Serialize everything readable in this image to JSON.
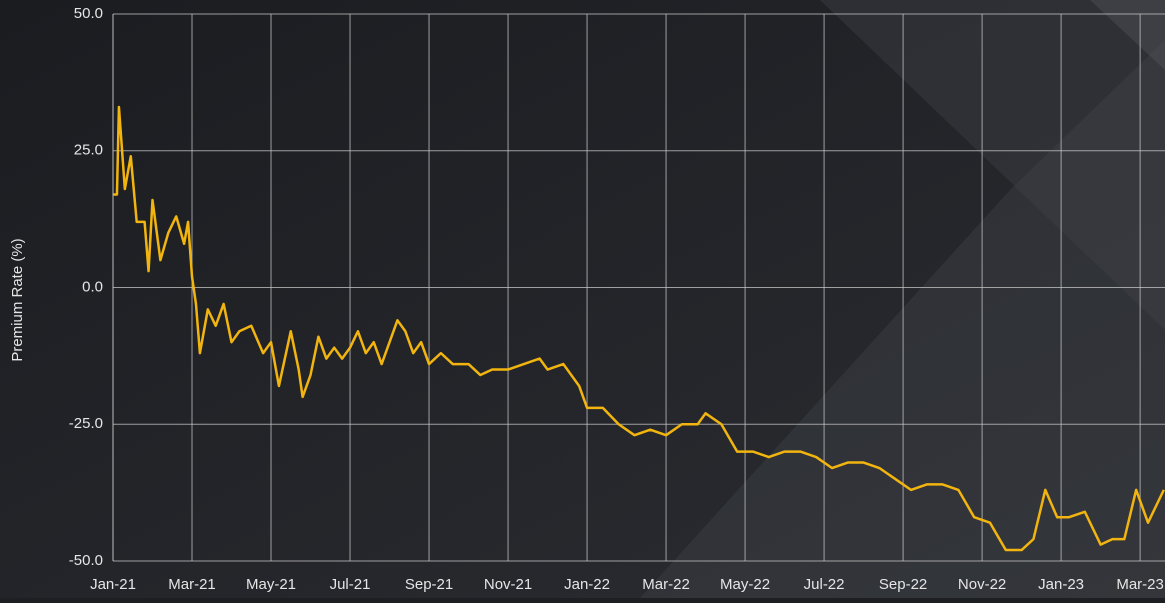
{
  "chart_data": {
    "type": "line",
    "y_label": "Premium Rate (%)",
    "x": [
      0,
      0.1,
      0.15,
      0.3,
      0.45,
      0.6,
      0.8,
      0.9,
      1.0,
      1.2,
      1.4,
      1.6,
      1.8,
      1.9,
      2.0,
      2.1,
      2.2,
      2.4,
      2.6,
      2.8,
      3.0,
      3.2,
      3.5,
      3.8,
      4.0,
      4.2,
      4.5,
      4.7,
      4.8,
      5.0,
      5.2,
      5.4,
      5.6,
      5.8,
      6.0,
      6.2,
      6.4,
      6.6,
      6.8,
      7.0,
      7.2,
      7.4,
      7.6,
      7.8,
      8.0,
      8.3,
      8.6,
      9.0,
      9.3,
      9.6,
      10.0,
      10.4,
      10.8,
      11.0,
      11.4,
      11.8,
      12.0,
      12.4,
      12.8,
      13.2,
      13.6,
      14.0,
      14.4,
      14.8,
      15.0,
      15.4,
      15.8,
      16.2,
      16.6,
      17.0,
      17.4,
      17.8,
      18.2,
      18.6,
      19.0,
      19.4,
      19.8,
      20.2,
      20.6,
      21.0,
      21.4,
      21.8,
      22.2,
      22.6,
      23.0,
      23.3,
      23.6,
      23.9,
      24.2,
      24.6,
      25.0,
      25.3,
      25.6,
      25.9,
      26.2,
      26.6
    ],
    "series": [
      {
        "name": "Premium Rate",
        "color": "#f2b50f",
        "values": [
          17,
          17,
          33,
          18,
          24,
          12,
          12,
          3,
          16,
          5,
          10,
          13,
          8,
          12,
          2,
          -3,
          -12,
          -4,
          -7,
          -3,
          -10,
          -8,
          -7,
          -12,
          -10,
          -18,
          -8,
          -15,
          -20,
          -16,
          -9,
          -13,
          -11,
          -13,
          -11,
          -8,
          -12,
          -10,
          -14,
          -10,
          -6,
          -8,
          -12,
          -10,
          -14,
          -12,
          -14,
          -14,
          -16,
          -15,
          -15,
          -14,
          -13,
          -15,
          -14,
          -18,
          -22,
          -22,
          -25,
          -27,
          -26,
          -27,
          -25,
          -25,
          -23,
          -25,
          -30,
          -30,
          -31,
          -30,
          -30,
          -31,
          -33,
          -32,
          -32,
          -33,
          -35,
          -37,
          -36,
          -36,
          -37,
          -42,
          -43,
          -48,
          -48,
          -46,
          -37,
          -42,
          -42,
          -41,
          -47,
          -46,
          -46,
          -37,
          -43,
          -37
        ]
      }
    ],
    "xlim": [
      0,
      26.63
    ],
    "xticks": [
      {
        "value": 0,
        "label": "Jan-21"
      },
      {
        "value": 2,
        "label": "Mar-21"
      },
      {
        "value": 4,
        "label": "May-21"
      },
      {
        "value": 6,
        "label": "Jul-21"
      },
      {
        "value": 8,
        "label": "Sep-21"
      },
      {
        "value": 10,
        "label": "Nov-21"
      },
      {
        "value": 12,
        "label": "Jan-22"
      },
      {
        "value": 14,
        "label": "Mar-22"
      },
      {
        "value": 16,
        "label": "May-22"
      },
      {
        "value": 18,
        "label": "Jul-22"
      },
      {
        "value": 20,
        "label": "Sep-22"
      },
      {
        "value": 22,
        "label": "Nov-22"
      },
      {
        "value": 24,
        "label": "Jan-23"
      },
      {
        "value": 26,
        "label": "Mar-23"
      }
    ],
    "ylim": [
      -50,
      50
    ],
    "yticks": [
      {
        "value": -50,
        "label": "-50.0"
      },
      {
        "value": -25,
        "label": "-25.0"
      },
      {
        "value": 0,
        "label": "0.0"
      },
      {
        "value": 25,
        "label": "25.0"
      },
      {
        "value": 50,
        "label": "50.0"
      }
    ],
    "grid": true
  }
}
